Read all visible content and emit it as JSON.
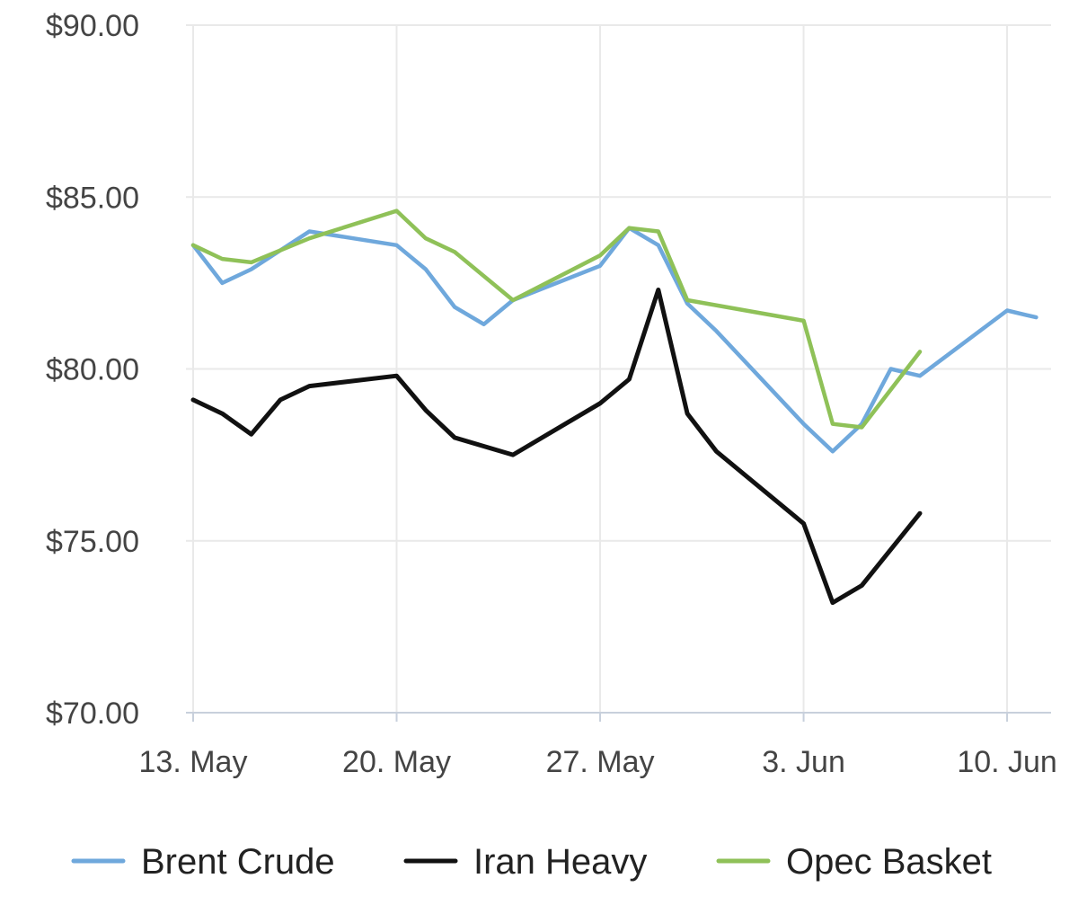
{
  "chart_data": {
    "type": "line",
    "title": "",
    "xlabel": "",
    "ylabel": "",
    "x_ticks": [
      {
        "label": "13. May",
        "day": 13
      },
      {
        "label": "20. May",
        "day": 20
      },
      {
        "label": "27. May",
        "day": 27
      },
      {
        "label": "3. Jun",
        "day": 34
      },
      {
        "label": "10. Jun",
        "day": 41
      }
    ],
    "xlim": [
      "2024-05-13",
      "2024-06-11"
    ],
    "ylim": [
      70,
      90
    ],
    "y_ticks": [
      {
        "label": "$70.00",
        "value": 70
      },
      {
        "label": "$75.00",
        "value": 75
      },
      {
        "label": "$80.00",
        "value": 80
      },
      {
        "label": "$85.00",
        "value": 85
      },
      {
        "label": "$90.00",
        "value": 90
      }
    ],
    "grid": true,
    "legend_position": "bottom",
    "series": [
      {
        "name": "Brent Crude",
        "color": "#6fa8dc",
        "points": [
          {
            "x": "2024-05-13",
            "y": 83.6
          },
          {
            "x": "2024-05-14",
            "y": 82.5
          },
          {
            "x": "2024-05-15",
            "y": 82.9
          },
          {
            "x": "2024-05-17",
            "y": 84.0
          },
          {
            "x": "2024-05-20",
            "y": 83.6
          },
          {
            "x": "2024-05-21",
            "y": 82.9
          },
          {
            "x": "2024-05-22",
            "y": 81.8
          },
          {
            "x": "2024-05-23",
            "y": 81.3
          },
          {
            "x": "2024-05-24",
            "y": 82.0
          },
          {
            "x": "2024-05-27",
            "y": 83.0
          },
          {
            "x": "2024-05-28",
            "y": 84.1
          },
          {
            "x": "2024-05-29",
            "y": 83.6
          },
          {
            "x": "2024-05-30",
            "y": 81.9
          },
          {
            "x": "2024-05-31",
            "y": 81.1
          },
          {
            "x": "2024-06-03",
            "y": 78.4
          },
          {
            "x": "2024-06-04",
            "y": 77.6
          },
          {
            "x": "2024-06-05",
            "y": 78.4
          },
          {
            "x": "2024-06-06",
            "y": 80.0
          },
          {
            "x": "2024-06-07",
            "y": 79.8
          },
          {
            "x": "2024-06-10",
            "y": 81.7
          },
          {
            "x": "2024-06-11",
            "y": 81.5
          }
        ]
      },
      {
        "name": "Iran Heavy",
        "color": "#111111",
        "points": [
          {
            "x": "2024-05-13",
            "y": 79.1
          },
          {
            "x": "2024-05-14",
            "y": 78.7
          },
          {
            "x": "2024-05-15",
            "y": 78.1
          },
          {
            "x": "2024-05-16",
            "y": 79.1
          },
          {
            "x": "2024-05-17",
            "y": 79.5
          },
          {
            "x": "2024-05-20",
            "y": 79.8
          },
          {
            "x": "2024-05-21",
            "y": 78.8
          },
          {
            "x": "2024-05-22",
            "y": 78.0
          },
          {
            "x": "2024-05-24",
            "y": 77.5
          },
          {
            "x": "2024-05-27",
            "y": 79.0
          },
          {
            "x": "2024-05-28",
            "y": 79.7
          },
          {
            "x": "2024-05-29",
            "y": 82.3
          },
          {
            "x": "2024-05-30",
            "y": 78.7
          },
          {
            "x": "2024-05-31",
            "y": 77.6
          },
          {
            "x": "2024-06-03",
            "y": 75.5
          },
          {
            "x": "2024-06-04",
            "y": 73.2
          },
          {
            "x": "2024-06-05",
            "y": 73.7
          },
          {
            "x": "2024-06-07",
            "y": 75.8
          }
        ]
      },
      {
        "name": "Opec Basket",
        "color": "#8fc158",
        "points": [
          {
            "x": "2024-05-13",
            "y": 83.6
          },
          {
            "x": "2024-05-14",
            "y": 83.2
          },
          {
            "x": "2024-05-15",
            "y": 83.1
          },
          {
            "x": "2024-05-17",
            "y": 83.8
          },
          {
            "x": "2024-05-20",
            "y": 84.6
          },
          {
            "x": "2024-05-21",
            "y": 83.8
          },
          {
            "x": "2024-05-22",
            "y": 83.4
          },
          {
            "x": "2024-05-24",
            "y": 82.0
          },
          {
            "x": "2024-05-27",
            "y": 83.3
          },
          {
            "x": "2024-05-28",
            "y": 84.1
          },
          {
            "x": "2024-05-29",
            "y": 84.0
          },
          {
            "x": "2024-05-30",
            "y": 82.0
          },
          {
            "x": "2024-06-03",
            "y": 81.4
          },
          {
            "x": "2024-06-04",
            "y": 78.4
          },
          {
            "x": "2024-06-05",
            "y": 78.3
          },
          {
            "x": "2024-06-07",
            "y": 80.5
          }
        ]
      }
    ]
  }
}
